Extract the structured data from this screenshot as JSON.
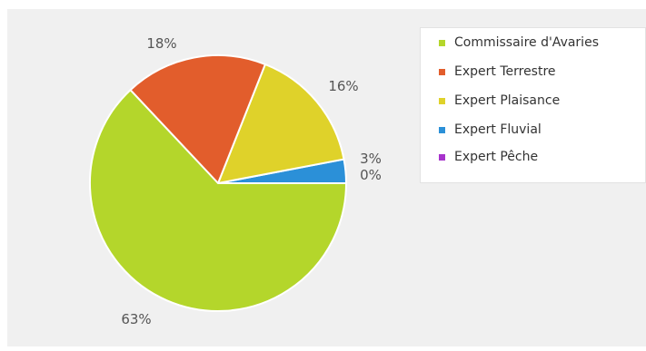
{
  "chart_data": {
    "type": "pie",
    "categories": [
      "Commissaire d'Avaries",
      "Expert Terrestre",
      "Expert Plaisance",
      "Expert Fluvial",
      "Expert Pêche"
    ],
    "values": [
      63,
      18,
      16,
      3,
      0
    ],
    "data_labels": [
      "63%",
      "18%",
      "16%",
      "3%",
      "0%"
    ],
    "colors": [
      "#b4d62b",
      "#e25d2c",
      "#dfd22a",
      "#2b90d8",
      "#a733cc"
    ],
    "legend_position": "top-right",
    "title": ""
  },
  "legend": {
    "items": [
      {
        "label": "Commissaire d'Avaries",
        "color": "#b4d62b"
      },
      {
        "label": "Expert Terrestre",
        "color": "#e25d2c"
      },
      {
        "label": "Expert Plaisance",
        "color": "#dfd22a"
      },
      {
        "label": "Expert Fluvial",
        "color": "#2b90d8"
      },
      {
        "label": "Expert Pêche",
        "color": "#a733cc"
      }
    ]
  }
}
